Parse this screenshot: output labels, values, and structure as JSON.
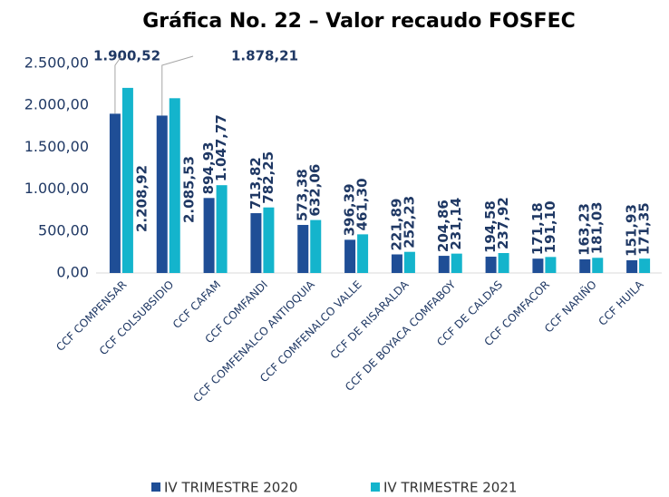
{
  "chart_data": {
    "type": "bar",
    "title": "Gráfica No. 22 – Valor recaudo FOSFEC",
    "categories": [
      "CCF COMPENSAR",
      "CCF COLSUBSIDIO",
      "CCF CAFAM",
      "CCF COMFANDI",
      "CCF COMFENALCO ANTIOQUIA",
      "CCF COMFENALCO VALLE",
      "CCF DE RISARALDA",
      "CCF DE BOYACA COMFABOY",
      "CCF DE CALDAS",
      "CCF COMFACOR",
      "CCF NARIÑO",
      "CCF HUILA"
    ],
    "series": [
      {
        "name": "IV TRIMESTRE 2020",
        "color": "#1f4e96",
        "values": [
          1900.52,
          1878.21,
          894.93,
          713.82,
          573.38,
          396.39,
          221.89,
          204.86,
          194.58,
          171.18,
          163.23,
          151.93
        ],
        "value_labels": [
          "1.900,52",
          "1.878,21",
          "894,93",
          "713,82",
          "573,38",
          "396,39",
          "221,89",
          "204,86",
          "194,58",
          "171,18",
          "163,23",
          "151,93"
        ]
      },
      {
        "name": "IV TRIMESTRE 2021",
        "color": "#14b4cc",
        "values": [
          2208.92,
          2085.53,
          1047.77,
          782.25,
          632.06,
          461.3,
          252.23,
          231.14,
          237.92,
          191.1,
          181.03,
          171.35
        ],
        "value_labels": [
          "2.208,92",
          "2.085,53",
          "1.047,77",
          "782,25",
          "632,06",
          "461,30",
          "252,23",
          "231,14",
          "237,92",
          "191,10",
          "181,03",
          "171,35"
        ]
      }
    ],
    "ylim": [
      0,
      2500
    ],
    "yticks": [
      {
        "value": 0,
        "label": "0,00"
      },
      {
        "value": 500,
        "label": "500,00"
      },
      {
        "value": 1000,
        "label": "1.000,00"
      },
      {
        "value": 1500,
        "label": "1.500,00"
      },
      {
        "value": 2000,
        "label": "2.000,00"
      },
      {
        "value": 2500,
        "label": "2.500,00"
      }
    ],
    "grid": false,
    "legend": "bottom"
  }
}
